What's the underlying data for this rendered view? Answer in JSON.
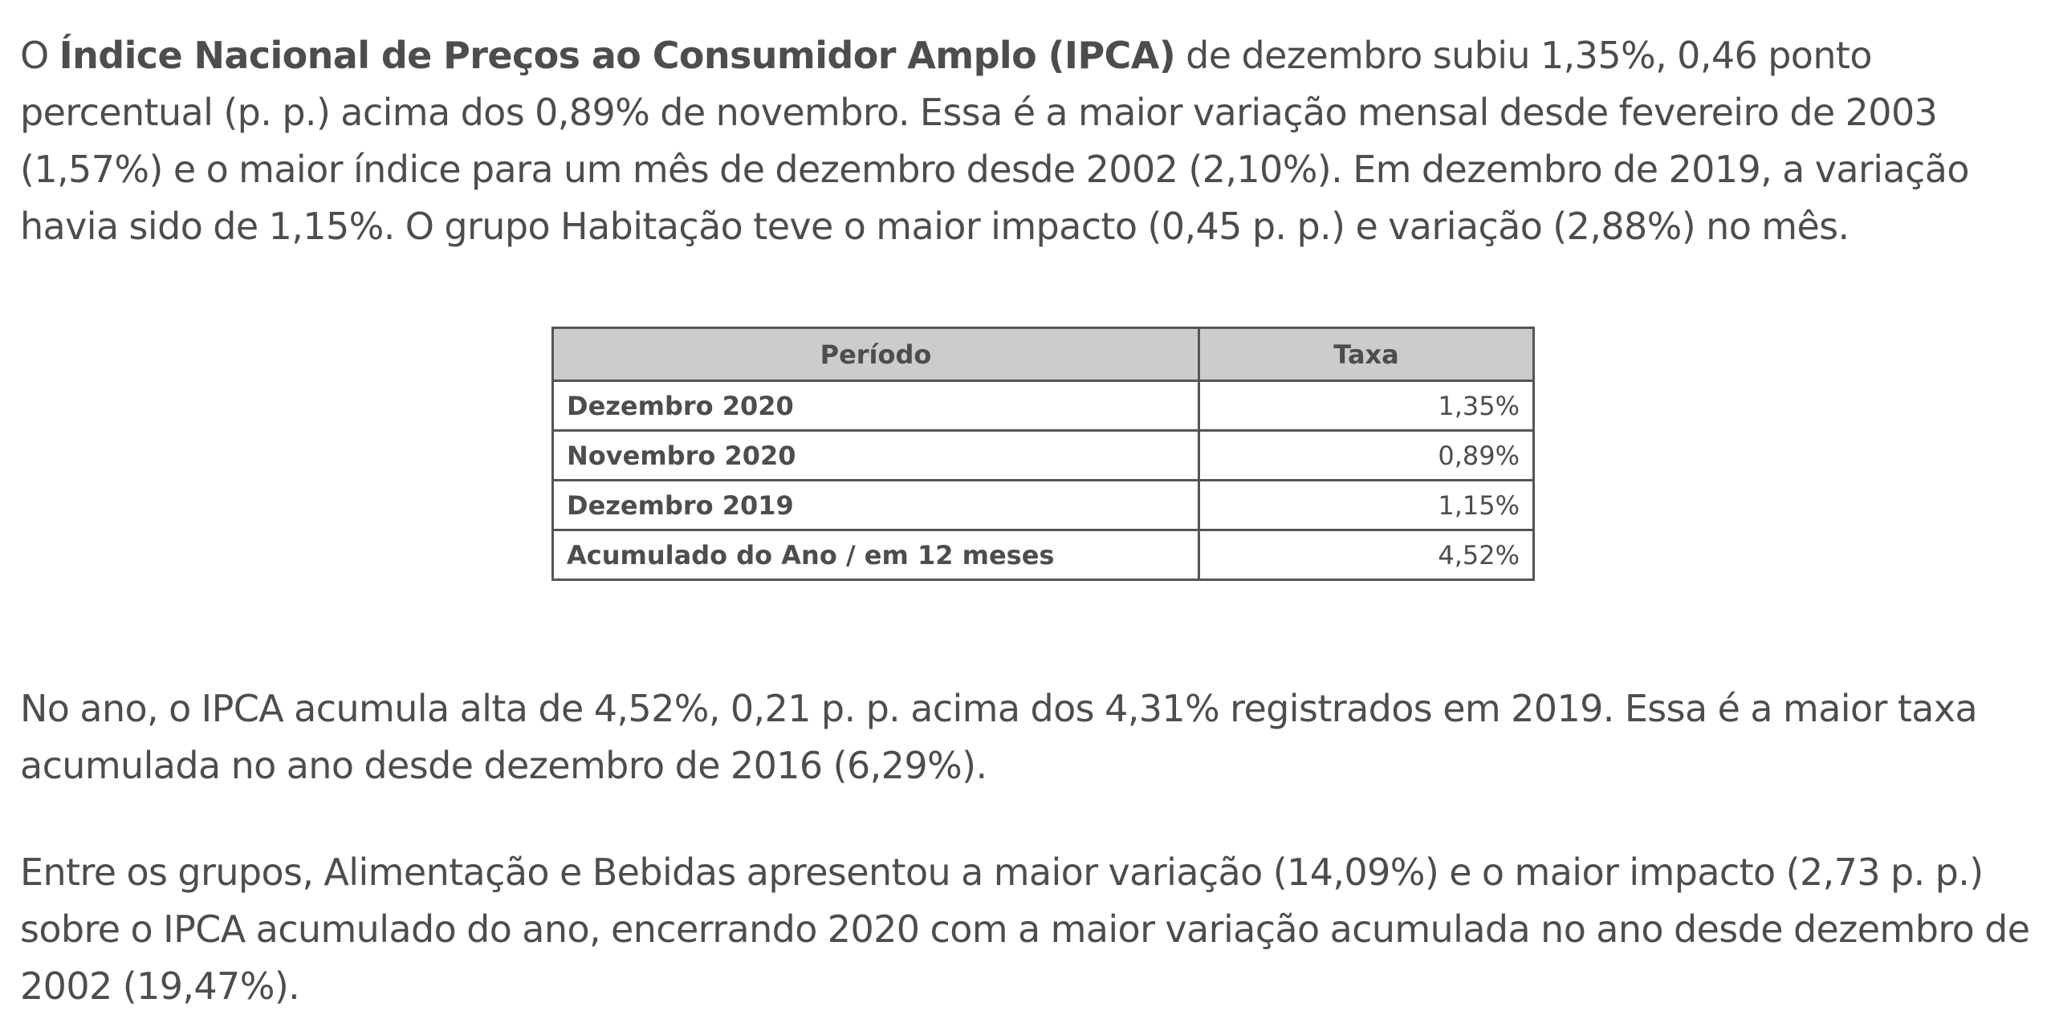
{
  "intro": {
    "pre": "O ",
    "bold": "Índice Nacional de Preços ao Consumidor Amplo (IPCA)",
    "post": " de dezembro subiu 1,35%, 0,46 ponto percentual (p. p.) acima dos 0,89% de novembro. Essa é a maior variação mensal desde fevereiro de 2003 (1,57%) e o maior índice para um mês de dezembro desde 2002 (2,10%). Em dezembro de 2019, a variação havia sido de 1,15%. O grupo Habitação teve o maior impacto (0,45 p. p.) e variação (2,88%) no mês."
  },
  "table": {
    "headers": {
      "periodo": "Período",
      "taxa": "Taxa"
    },
    "rows": [
      {
        "periodo": "Dezembro 2020",
        "taxa": "1,35%"
      },
      {
        "periodo": "Novembro 2020",
        "taxa": "0,89%"
      },
      {
        "periodo": "Dezembro 2019",
        "taxa": "1,15%"
      },
      {
        "periodo": "Acumulado do Ano / em 12 meses",
        "taxa": "4,52%"
      }
    ]
  },
  "paragraph_2": "No ano, o IPCA acumula alta de 4,52%, 0,21 p. p. acima dos 4,31% registrados em 2019. Essa é a maior taxa acumulada no ano desde dezembro de 2016 (6,29%).",
  "paragraph_3": "Entre os grupos, Alimentação e Bebidas apresentou a maior variação (14,09%) e o maior impacto (2,73 p. p.) sobre o IPCA acumulado do ano, encerrando 2020 com a maior variação acumulada no ano desde dezembro de 2002 (19,47%)."
}
